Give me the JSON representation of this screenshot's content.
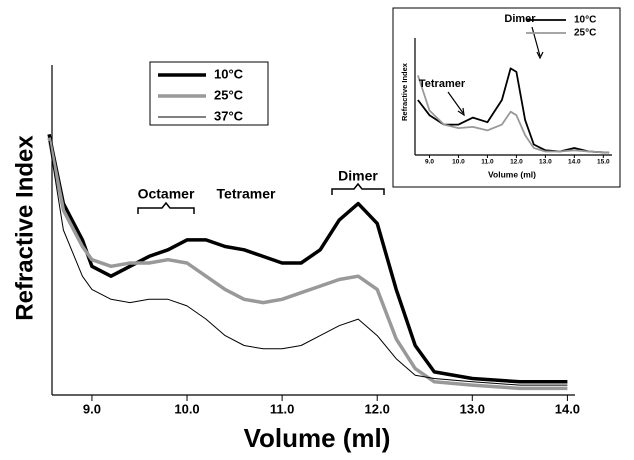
{
  "chart_data": [
    {
      "type": "line",
      "xlabel": "Volume (ml)",
      "ylabel": "Refractive Index",
      "x": [
        8.55,
        8.7,
        8.9,
        9.0,
        9.2,
        9.4,
        9.6,
        9.8,
        10.0,
        10.2,
        10.4,
        10.6,
        10.8,
        11.0,
        11.2,
        11.4,
        11.6,
        11.8,
        12.0,
        12.2,
        12.4,
        12.6,
        13.0,
        13.5,
        14.0
      ],
      "series": [
        {
          "name": "10°C",
          "color": "#000000",
          "values": [
            79,
            58,
            47,
            39,
            36,
            39,
            42,
            44,
            47,
            47,
            45,
            44,
            42,
            40,
            40,
            44,
            53,
            58,
            52,
            32,
            15,
            7,
            5,
            4,
            4
          ]
        },
        {
          "name": "25°C",
          "color": "#999999",
          "values": [
            78,
            56,
            45,
            41,
            39,
            40,
            40,
            41,
            40,
            36,
            32,
            29,
            28,
            29,
            31,
            33,
            35,
            36,
            32,
            17,
            8,
            4,
            3,
            2,
            2
          ]
        },
        {
          "name": "37°C",
          "color": "#000000",
          "values": [
            77,
            50,
            36,
            32,
            29,
            28,
            29,
            29,
            27,
            23,
            18,
            15,
            14,
            14,
            15,
            18,
            21,
            23,
            18,
            11,
            6,
            5,
            4,
            3,
            3
          ]
        }
      ],
      "xlim": [
        8.58,
        14.08
      ],
      "ylim": [
        0,
        100
      ],
      "xticks": [
        {
          "value": 9,
          "label": "9.0"
        },
        {
          "value": 10,
          "label": "10.0"
        },
        {
          "value": 11,
          "label": "11.0"
        },
        {
          "value": 12,
          "label": "12.0"
        },
        {
          "value": 13,
          "label": "13.0"
        },
        {
          "value": 14,
          "label": "14.0"
        }
      ],
      "annotations": [
        "Octamer",
        "Tetramer",
        "Dimer"
      ]
    },
    {
      "type": "line",
      "xlabel": "Volume (ml)",
      "ylabel": "Refractive Index",
      "x": [
        8.6,
        9.0,
        9.5,
        10.0,
        10.5,
        11.0,
        11.5,
        11.8,
        12.0,
        12.3,
        12.6,
        13.0,
        13.5,
        14.0,
        14.5,
        15.2
      ],
      "series": [
        {
          "name": "10°C",
          "color": "#000000",
          "values": [
            47,
            34,
            26,
            26,
            32,
            28,
            47,
            74,
            71,
            30,
            9,
            4,
            3,
            6,
            3,
            2
          ]
        },
        {
          "name": "25°C",
          "color": "#999999",
          "values": [
            68,
            38,
            26,
            23,
            24,
            21,
            26,
            37,
            34,
            17,
            6,
            3,
            3,
            4,
            3,
            2
          ]
        }
      ],
      "xlim": [
        8.5,
        15.3
      ],
      "ylim": [
        0,
        100
      ],
      "xticks": [
        {
          "value": 9,
          "label": "9.0"
        },
        {
          "value": 10,
          "label": "10.0"
        },
        {
          "value": 11,
          "label": "11.0"
        },
        {
          "value": 12,
          "label": "12.0"
        },
        {
          "value": 13,
          "label": "13.0"
        },
        {
          "value": 14,
          "label": "14.0"
        },
        {
          "value": 15,
          "label": "15.0"
        }
      ],
      "annotations": [
        "Dimer",
        "Tetramer"
      ]
    }
  ]
}
